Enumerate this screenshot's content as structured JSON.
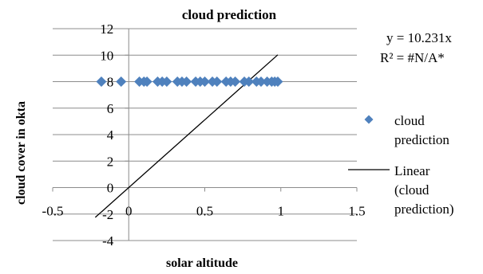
{
  "chart_data": {
    "type": "scatter",
    "title": "cloud prediction",
    "xlabel": "solar altitude",
    "ylabel": "cloud cover in okta",
    "xlim": [
      -0.5,
      1.5
    ],
    "ylim": [
      -4,
      12
    ],
    "x_ticks": [
      "-0.5",
      "0",
      "0.5",
      "1",
      "1.5"
    ],
    "y_ticks": [
      "-4",
      "-2",
      "0",
      "2",
      "4",
      "6",
      "8",
      "10",
      "12"
    ],
    "grid": "horizontal",
    "legend_position": "right",
    "series": [
      {
        "name": "cloud prediction",
        "kind": "scatter",
        "marker": "diamond",
        "color": "#4F81BD",
        "x": [
          -0.18,
          -0.05,
          0.07,
          0.1,
          0.12,
          0.19,
          0.22,
          0.25,
          0.32,
          0.35,
          0.38,
          0.44,
          0.47,
          0.5,
          0.55,
          0.58,
          0.64,
          0.67,
          0.7,
          0.76,
          0.79,
          0.84,
          0.87,
          0.91,
          0.94,
          0.96,
          0.98
        ],
        "y": [
          8,
          8,
          8,
          8,
          8,
          8,
          8,
          8,
          8,
          8,
          8,
          8,
          8,
          8,
          8,
          8,
          8,
          8,
          8,
          8,
          8,
          8,
          8,
          8,
          8,
          8,
          8
        ]
      },
      {
        "name": "Linear (cloud prediction)",
        "name_lines": [
          "Linear",
          "(cloud",
          "prediction)"
        ],
        "kind": "trendline",
        "color": "#000000",
        "slope": 10.231,
        "x_range": [
          -0.22,
          0.98
        ]
      }
    ],
    "legend": [
      {
        "label_lines": [
          "cloud",
          "prediction"
        ]
      },
      {
        "label_lines": [
          "Linear",
          "(cloud",
          "prediction)"
        ]
      }
    ],
    "annotations": {
      "equation": "y = 10.231x",
      "r_squared": "R² = #N/A*"
    }
  }
}
